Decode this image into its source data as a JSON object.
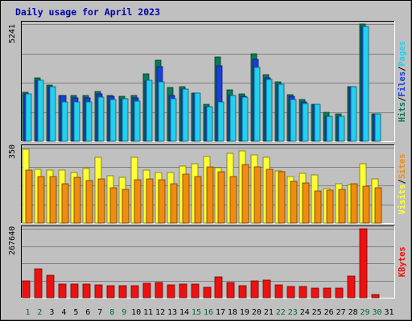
{
  "chart_data": {
    "type": "bar",
    "title": "Daily usage for April 2023",
    "x_labels": [
      "1",
      "2",
      "3",
      "4",
      "5",
      "6",
      "7",
      "8",
      "9",
      "10",
      "11",
      "12",
      "13",
      "14",
      "15",
      "16",
      "17",
      "18",
      "19",
      "20",
      "21",
      "22",
      "23",
      "24",
      "25",
      "26",
      "27",
      "28",
      "29",
      "30",
      "31"
    ],
    "weekend_days": [
      1,
      2,
      8,
      9,
      15,
      16,
      22,
      23,
      29,
      30
    ],
    "colors": {
      "hits": "#0a7a5a",
      "files": "#1a3fe0",
      "pages": "#22d0f0",
      "visits": "#ffff33",
      "sites": "#f08c10",
      "kbytes": "#ee1111",
      "weekday_label": "#000000",
      "weekend_label": "#006633",
      "background": "#c0c0c0",
      "panel": "#c0c0c0",
      "title": "#0000aa"
    },
    "panels": [
      {
        "name": "hits-files-pages",
        "y_max_label": "5241",
        "y_max": 5241,
        "legend": [
          {
            "text": "Hits",
            "color": "#0a7a5a"
          },
          {
            "text": "/",
            "color": "#000000"
          },
          {
            "text": "Files",
            "color": "#1a3fe0"
          },
          {
            "text": "/",
            "color": "#000000"
          },
          {
            "text": "Pages",
            "color": "#22d0f0"
          }
        ],
        "series": [
          {
            "name": "Hits",
            "values": [
              2200,
              2830,
              2530,
              2060,
              2060,
              2060,
              2220,
              2060,
              2010,
              2060,
              3030,
              3640,
              2390,
              2440,
              2140,
              1650,
              3780,
              2280,
              2110,
              3910,
              2980,
              2670,
              2090,
              1880,
              1640,
              1280,
              1210,
              2440,
              5240,
              1230,
              0
            ]
          },
          {
            "name": "Files",
            "values": [
              2110,
              2720,
              2430,
              2050,
              1950,
              1950,
              2120,
              2010,
              1900,
              1950,
              2690,
              3350,
              2060,
              2330,
              2140,
              1540,
              3370,
              2060,
              2010,
              3660,
              2820,
              2540,
              2010,
              1770,
              1640,
              1120,
              1120,
              2440,
              5130,
              1230,
              0
            ]
          },
          {
            "name": "Pages",
            "values": [
              2110,
              2720,
              2430,
              1760,
              1760,
              1760,
              1990,
              1880,
              1900,
              1810,
              2720,
              2660,
              1920,
              2330,
              2140,
              1540,
              1760,
              2060,
              1990,
              3310,
              2770,
              2540,
              1880,
              1680,
              1640,
              1120,
              1120,
              2440,
              5130,
              1230,
              0
            ]
          }
        ]
      },
      {
        "name": "visits-sites",
        "y_max_label": "350",
        "y_max": 350,
        "legend": [
          {
            "text": "Visits",
            "color": "#ffff33"
          },
          {
            "text": "/",
            "color": "#000000"
          },
          {
            "text": "Sites",
            "color": "#f08c10"
          }
        ],
        "series": [
          {
            "name": "Visits",
            "values": [
              344,
              250,
              245,
              245,
              236,
              253,
              307,
              221,
              213,
              304,
              245,
              236,
              236,
              266,
              275,
              310,
              258,
              324,
              334,
              317,
              306,
              241,
              215,
              232,
              225,
              159,
              184,
              178,
              275,
              203,
              0
            ]
          },
          {
            "name": "Sites",
            "values": [
              245,
              216,
              216,
              182,
              213,
              199,
              206,
              165,
              158,
              202,
              206,
              202,
              182,
              227,
              216,
              260,
              239,
              216,
              270,
              260,
              250,
              237,
              194,
              186,
              150,
              153,
              158,
              182,
              173,
              162,
              0
            ]
          }
        ]
      },
      {
        "name": "kbytes",
        "y_max_label": "267640",
        "y_max": 267640,
        "legend": [
          {
            "text": "KBytes",
            "color": "#ee1111"
          }
        ],
        "series": [
          {
            "name": "KBytes",
            "values": [
              64000,
              111000,
              86000,
              53000,
              53000,
              53000,
              50000,
              48000,
              46000,
              46000,
              55000,
              58000,
              50000,
              54000,
              54000,
              39000,
              81000,
              58000,
              46000,
              64000,
              69000,
              51000,
              43000,
              43000,
              38000,
              38000,
              36000,
              83000,
              267640,
              14000,
              0
            ]
          }
        ]
      }
    ]
  }
}
